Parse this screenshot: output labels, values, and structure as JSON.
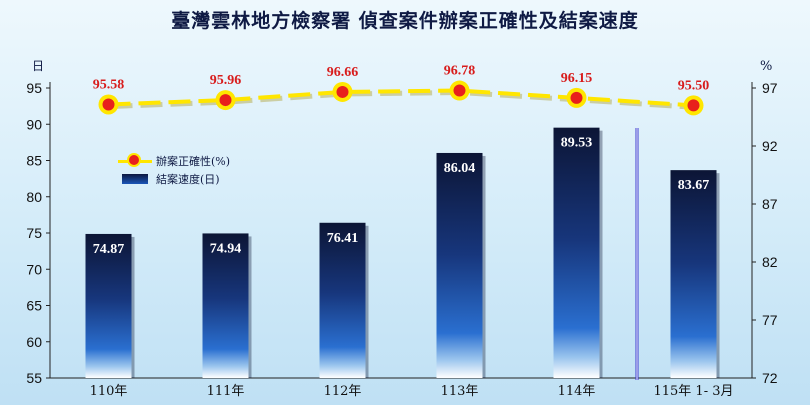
{
  "title": "臺灣雲林地方檢察署  偵查案件辦案正確性及結案速度",
  "chart_data": {
    "type": "bar",
    "categories": [
      "110年",
      "111年",
      "112年",
      "113年",
      "114年",
      "115年 1- 3月"
    ],
    "left_axis": {
      "unit": "日",
      "ylim": [
        55,
        95
      ],
      "ticks": [
        55,
        60,
        65,
        70,
        75,
        80,
        85,
        90,
        95
      ]
    },
    "right_axis": {
      "unit": "%",
      "ylim": [
        72,
        97
      ],
      "ticks": [
        72,
        77,
        82,
        87,
        92,
        97
      ]
    },
    "series": [
      {
        "name": "結案速度(日)",
        "type": "bar",
        "axis": "left",
        "values": [
          74.87,
          74.94,
          76.41,
          86.04,
          89.53,
          83.67
        ]
      },
      {
        "name": "辦案正確性(%)",
        "type": "line",
        "axis": "right",
        "values": [
          95.58,
          95.96,
          96.66,
          96.78,
          96.15,
          95.5
        ]
      }
    ],
    "value_labels_bar": [
      "74.87",
      "74.94",
      "76.41",
      "86.04",
      "89.53",
      "83.67"
    ],
    "value_labels_line": [
      "95.58",
      "95.96",
      "96.66",
      "96.78",
      "96.15",
      "95.50"
    ],
    "legend_position": "upper-left",
    "grid": false,
    "colors": {
      "bar_top": "#0d1840",
      "bar_bottom": "#ffffff",
      "line": "#ffe600",
      "marker": "#e8201c",
      "line_label": "#d81c1c"
    }
  },
  "legend": {
    "line_label": "辦案正確性(%)",
    "bar_label": "結案速度(日)"
  }
}
